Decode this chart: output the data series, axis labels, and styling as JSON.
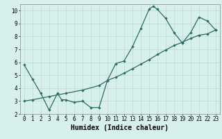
{
  "curve1_x": [
    0,
    1,
    2,
    3,
    4,
    4.5,
    5,
    6,
    7,
    8,
    9,
    10,
    11,
    12,
    13,
    14,
    15,
    15.5,
    16,
    17,
    18,
    19,
    20,
    21,
    22,
    23
  ],
  "curve1_y": [
    5.8,
    4.7,
    3.6,
    2.3,
    3.6,
    3.1,
    3.1,
    2.9,
    3.0,
    2.5,
    2.5,
    4.6,
    5.9,
    6.1,
    7.2,
    8.6,
    10.1,
    10.35,
    10.1,
    9.4,
    8.3,
    7.5,
    8.3,
    9.5,
    9.2,
    8.5
  ],
  "curve2_x": [
    0,
    1,
    3,
    5,
    7,
    9,
    10,
    11,
    12,
    13,
    14,
    15,
    16,
    17,
    18,
    19,
    20,
    21,
    22,
    23
  ],
  "curve2_y": [
    3.0,
    3.1,
    3.35,
    3.6,
    3.85,
    4.2,
    4.6,
    4.85,
    5.15,
    5.5,
    5.85,
    6.2,
    6.6,
    6.95,
    7.3,
    7.55,
    7.85,
    8.1,
    8.2,
    8.5
  ],
  "bg_color": "#d8f0ec",
  "line_color": "#2a6b65",
  "grid_color": "#c0ddd8",
  "xlim": [
    -0.5,
    23.5
  ],
  "ylim": [
    2,
    10.5
  ],
  "yticks": [
    2,
    3,
    4,
    5,
    6,
    7,
    8,
    9,
    10
  ],
  "xticks": [
    0,
    1,
    2,
    3,
    4,
    5,
    6,
    7,
    8,
    9,
    10,
    11,
    12,
    13,
    14,
    15,
    16,
    17,
    18,
    19,
    20,
    21,
    22,
    23
  ],
  "xlabel": "Humidex (Indice chaleur)",
  "xlabel_fontsize": 7.0,
  "tick_fontsize": 5.5,
  "marker_size": 2.2,
  "lw": 0.9
}
